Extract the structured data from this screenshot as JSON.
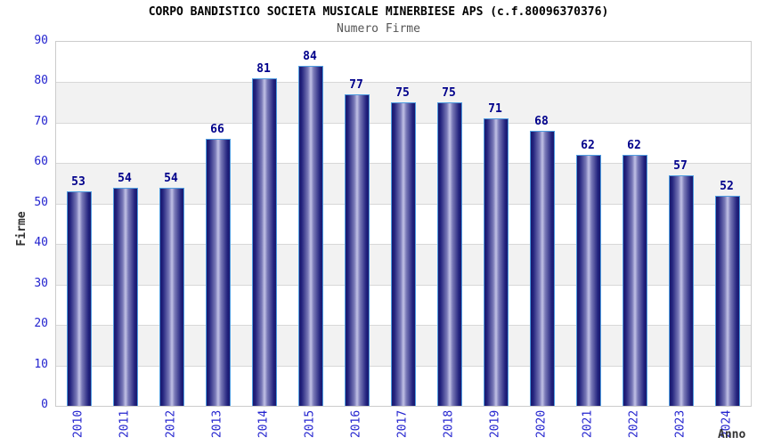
{
  "chart_data": {
    "type": "bar",
    "title": "CORPO BANDISTICO SOCIETA MUSICALE MINERBIESE APS (c.f.80096370376)",
    "subtitle": "Numero Firme",
    "xlabel": "Anno",
    "ylabel": "Firme",
    "categories": [
      "2010",
      "2011",
      "2012",
      "2013",
      "2014",
      "2015",
      "2016",
      "2017",
      "2018",
      "2019",
      "2020",
      "2021",
      "2022",
      "2023",
      "2024"
    ],
    "values": [
      53,
      54,
      54,
      66,
      81,
      84,
      77,
      75,
      75,
      71,
      68,
      62,
      62,
      57,
      52
    ],
    "ylim": [
      0,
      90
    ],
    "ytick_step": 10,
    "grid": true,
    "legend": "none",
    "band_colors": [
      "#ffffff",
      "#f2f2f2"
    ],
    "colors": {
      "title": "#000000",
      "subtitle": "#555555",
      "tick_label": "#2424cf",
      "value_label": "#00008b",
      "axis_label": "#333333",
      "gridline": "#d8d8d8",
      "plot_border": "#cccccc",
      "bar_border": "#4f9ce0",
      "bar_dark": "#19196e",
      "bar_mid": "#21217c",
      "bar_half": "#7a7ab8",
      "bar_light": "#c2c2e6"
    }
  }
}
